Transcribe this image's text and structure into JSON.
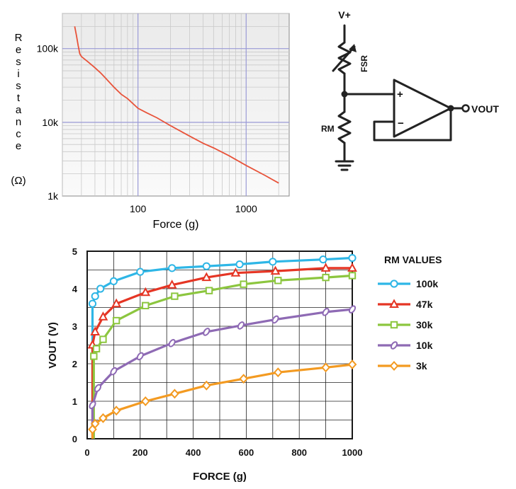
{
  "circuit": {
    "supply_label": "V+",
    "fsr_label": "FSR",
    "rm_label": "RM",
    "plus_label": "+",
    "minus_label": "−",
    "output_label": "VOUT"
  },
  "chart_data": [
    {
      "type": "line",
      "xlabel": "Force (g)",
      "ylabel": "Resistance",
      "ylabel_unit": "(Ω)",
      "x_scale": "log",
      "y_scale": "log",
      "xlim": [
        20,
        2500
      ],
      "ylim": [
        1000,
        300000
      ],
      "xticks": [
        {
          "value": 100,
          "label": "100"
        },
        {
          "value": 1000,
          "label": "1000"
        }
      ],
      "yticks": [
        {
          "value": 1000,
          "label": "1k"
        },
        {
          "value": 10000,
          "label": "10k"
        },
        {
          "value": 100000,
          "label": "100k"
        }
      ],
      "grid": true,
      "line_color": "#e8533a",
      "series": [
        {
          "x": [
            26,
            27,
            28,
            29,
            30,
            35,
            40,
            45,
            50,
            60,
            70,
            80,
            100,
            120,
            150,
            200,
            300,
            400,
            500,
            700,
            1000,
            1500,
            2000
          ],
          "y": [
            200000,
            150000,
            110000,
            85000,
            78000,
            65000,
            55000,
            47000,
            40000,
            30000,
            24000,
            21000,
            15500,
            13500,
            11500,
            9000,
            6500,
            5200,
            4500,
            3500,
            2600,
            1900,
            1500
          ]
        }
      ]
    },
    {
      "type": "line",
      "xlabel": "FORCE (g)",
      "ylabel": "VOUT (V)",
      "xlim": [
        0,
        1000
      ],
      "ylim": [
        0,
        5
      ],
      "xticks": [
        0,
        200,
        400,
        600,
        800,
        1000
      ],
      "yticks": [
        0,
        1,
        2,
        3,
        4,
        5
      ],
      "grid": true,
      "legend_title": "RM VALUES",
      "legend_position": "right",
      "series": [
        {
          "name": "100k",
          "color": "#2eb6e6",
          "marker": "circle",
          "x": [
            20,
            30,
            50,
            100,
            200,
            320,
            450,
            575,
            700,
            890,
            1000
          ],
          "y": [
            3.6,
            3.8,
            4.0,
            4.2,
            4.45,
            4.55,
            4.6,
            4.65,
            4.72,
            4.78,
            4.82
          ]
        },
        {
          "name": "47k",
          "color": "#e53524",
          "marker": "triangle",
          "x": [
            20,
            30,
            60,
            110,
            220,
            320,
            450,
            560,
            710,
            900,
            1000
          ],
          "y": [
            2.5,
            2.85,
            3.25,
            3.6,
            3.9,
            4.1,
            4.3,
            4.42,
            4.47,
            4.55,
            4.55
          ]
        },
        {
          "name": "30k",
          "color": "#8cc63f",
          "marker": "square",
          "x": [
            25,
            35,
            60,
            110,
            220,
            330,
            460,
            590,
            720,
            900,
            1000
          ],
          "y": [
            2.2,
            2.4,
            2.65,
            3.15,
            3.55,
            3.8,
            3.95,
            4.12,
            4.22,
            4.3,
            4.35
          ]
        },
        {
          "name": "10k",
          "color": "#8e6ab4",
          "marker": "slash-oval",
          "x": [
            20,
            40,
            100,
            200,
            320,
            450,
            580,
            710,
            900,
            1000
          ],
          "y": [
            0.9,
            1.35,
            1.8,
            2.2,
            2.55,
            2.85,
            3.02,
            3.18,
            3.38,
            3.45
          ]
        },
        {
          "name": "3k",
          "color": "#f39a21",
          "marker": "diamond",
          "x": [
            20,
            30,
            60,
            110,
            220,
            330,
            450,
            590,
            720,
            900,
            1000
          ],
          "y": [
            0.25,
            0.4,
            0.55,
            0.75,
            1.0,
            1.2,
            1.42,
            1.6,
            1.77,
            1.9,
            1.98
          ]
        }
      ]
    }
  ]
}
